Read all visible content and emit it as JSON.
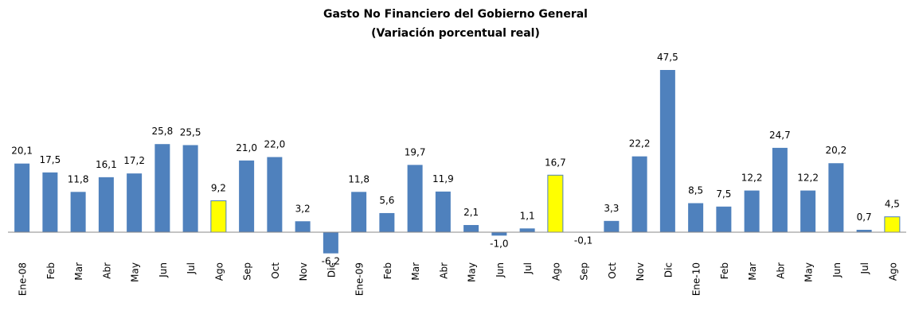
{
  "chart_data": {
    "type": "bar",
    "title": "Gasto No Financiero del Gobierno General",
    "subtitle": "(Variación porcentual real)",
    "categories": [
      "Ene-08",
      "Feb",
      "Mar",
      "Abr",
      "May",
      "Jun",
      "Jul",
      "Ago",
      "Sep",
      "Oct",
      "Nov",
      "Dic",
      "Ene-09",
      "Feb",
      "Mar",
      "Abr",
      "May",
      "Jun",
      "Jul",
      "Ago",
      "Sep",
      "Oct",
      "Nov",
      "Dic",
      "Ene-10",
      "Feb",
      "Mar",
      "Abr",
      "May",
      "Jun",
      "Jul",
      "Ago"
    ],
    "values": [
      20.1,
      17.5,
      11.8,
      16.1,
      17.2,
      25.8,
      25.5,
      9.2,
      21.0,
      22.0,
      3.2,
      -6.2,
      11.8,
      5.6,
      19.7,
      11.9,
      2.1,
      -1.0,
      1.1,
      16.7,
      -0.1,
      3.3,
      22.2,
      47.5,
      8.5,
      7.5,
      12.2,
      24.7,
      12.2,
      20.2,
      0.7,
      4.5
    ],
    "value_labels": [
      "20,1",
      "17,5",
      "11,8",
      "16,1",
      "17,2",
      "25,8",
      "25,5",
      "9,2",
      "21,0",
      "22,0",
      "3,2",
      "-6,2",
      "11,8",
      "5,6",
      "19,7",
      "11,9",
      "2,1",
      "-1,0",
      "1,1",
      "16,7",
      "-0,1",
      "3,3",
      "22,2",
      "47,5",
      "8,5",
      "7,5",
      "12,2",
      "24,7",
      "12,2",
      "20,2",
      "0,7",
      "4,5"
    ],
    "colors": [
      "#4f81bd",
      "#4f81bd",
      "#4f81bd",
      "#4f81bd",
      "#4f81bd",
      "#4f81bd",
      "#4f81bd",
      "#ffff00",
      "#4f81bd",
      "#4f81bd",
      "#4f81bd",
      "#4f81bd",
      "#4f81bd",
      "#4f81bd",
      "#4f81bd",
      "#4f81bd",
      "#4f81bd",
      "#4f81bd",
      "#4f81bd",
      "#ffff00",
      "#4f81bd",
      "#4f81bd",
      "#4f81bd",
      "#4f81bd",
      "#4f81bd",
      "#4f81bd",
      "#4f81bd",
      "#4f81bd",
      "#4f81bd",
      "#4f81bd",
      "#4f81bd",
      "#ffff00"
    ]
  }
}
